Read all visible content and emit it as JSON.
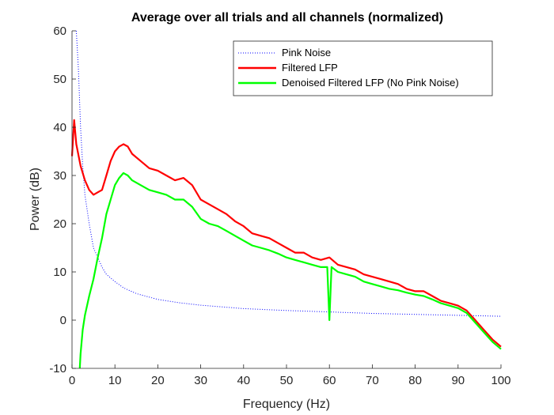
{
  "chart_data": {
    "type": "line",
    "title": "Average over all trials and all channels (normalized)",
    "xlabel": "Frequency (Hz)",
    "ylabel": "Power (dB)",
    "xlim": [
      0,
      100
    ],
    "ylim": [
      -10,
      60
    ],
    "xticks": [
      0,
      10,
      20,
      30,
      40,
      50,
      60,
      70,
      80,
      90,
      100
    ],
    "yticks": [
      -10,
      0,
      10,
      20,
      30,
      40,
      50,
      60
    ],
    "grid": false,
    "legend_position": "top-right",
    "series": [
      {
        "name": "Pink Noise",
        "color": "#0000ff",
        "style": "dotted",
        "points": [
          [
            1,
            60
          ],
          [
            1.5,
            52
          ],
          [
            2,
            40
          ],
          [
            2.5,
            32
          ],
          [
            3,
            26
          ],
          [
            4,
            20
          ],
          [
            5,
            15
          ],
          [
            6,
            13
          ],
          [
            7,
            11
          ],
          [
            8,
            9.5
          ],
          [
            10,
            8
          ],
          [
            12,
            6.7
          ],
          [
            15,
            5.5
          ],
          [
            20,
            4.3
          ],
          [
            25,
            3.6
          ],
          [
            30,
            3.1
          ],
          [
            40,
            2.4
          ],
          [
            50,
            2.0
          ],
          [
            60,
            1.7
          ],
          [
            70,
            1.4
          ],
          [
            80,
            1.2
          ],
          [
            90,
            1.0
          ],
          [
            100,
            0.8
          ]
        ]
      },
      {
        "name": "Filtered LFP",
        "color": "#ff0000",
        "style": "solid",
        "points": [
          [
            0,
            34
          ],
          [
            0.5,
            41.5
          ],
          [
            1,
            36.5
          ],
          [
            2,
            32
          ],
          [
            3,
            29
          ],
          [
            4,
            27
          ],
          [
            5,
            26
          ],
          [
            6,
            26.5
          ],
          [
            7,
            27
          ],
          [
            8,
            30
          ],
          [
            9,
            33
          ],
          [
            10,
            35
          ],
          [
            11,
            36
          ],
          [
            12,
            36.5
          ],
          [
            13,
            36
          ],
          [
            14,
            34.5
          ],
          [
            16,
            33
          ],
          [
            18,
            31.5
          ],
          [
            20,
            31
          ],
          [
            22,
            30
          ],
          [
            24,
            29
          ],
          [
            26,
            29.5
          ],
          [
            28,
            28
          ],
          [
            30,
            25
          ],
          [
            32,
            24
          ],
          [
            34,
            23
          ],
          [
            36,
            22
          ],
          [
            38,
            20.5
          ],
          [
            40,
            19.5
          ],
          [
            42,
            18
          ],
          [
            44,
            17.5
          ],
          [
            46,
            17
          ],
          [
            48,
            16
          ],
          [
            50,
            15
          ],
          [
            52,
            14
          ],
          [
            54,
            14
          ],
          [
            56,
            13
          ],
          [
            58,
            12.5
          ],
          [
            60,
            13
          ],
          [
            62,
            11.5
          ],
          [
            64,
            11
          ],
          [
            66,
            10.5
          ],
          [
            68,
            9.5
          ],
          [
            70,
            9
          ],
          [
            72,
            8.5
          ],
          [
            74,
            8
          ],
          [
            76,
            7.5
          ],
          [
            78,
            6.5
          ],
          [
            80,
            6
          ],
          [
            82,
            6
          ],
          [
            84,
            5
          ],
          [
            86,
            4
          ],
          [
            88,
            3.5
          ],
          [
            90,
            3
          ],
          [
            92,
            2
          ],
          [
            94,
            0
          ],
          [
            96,
            -2
          ],
          [
            98,
            -4
          ],
          [
            100,
            -5.5
          ]
        ]
      },
      {
        "name": "Denoised Filtered LFP (No Pink Noise)",
        "color": "#00ff00",
        "style": "solid",
        "points": [
          [
            1.8,
            -10
          ],
          [
            2,
            -7
          ],
          [
            2.5,
            -2
          ],
          [
            3,
            1
          ],
          [
            4,
            5
          ],
          [
            5,
            8.5
          ],
          [
            6,
            13
          ],
          [
            7,
            17
          ],
          [
            8,
            22
          ],
          [
            9,
            25
          ],
          [
            10,
            28
          ],
          [
            11,
            29.5
          ],
          [
            12,
            30.5
          ],
          [
            13,
            30
          ],
          [
            14,
            29
          ],
          [
            16,
            28
          ],
          [
            18,
            27
          ],
          [
            20,
            26.5
          ],
          [
            22,
            26
          ],
          [
            24,
            25
          ],
          [
            26,
            25
          ],
          [
            28,
            23.5
          ],
          [
            30,
            21
          ],
          [
            32,
            20
          ],
          [
            34,
            19.5
          ],
          [
            36,
            18.5
          ],
          [
            38,
            17.5
          ],
          [
            40,
            16.5
          ],
          [
            42,
            15.5
          ],
          [
            44,
            15
          ],
          [
            46,
            14.5
          ],
          [
            48,
            13.8
          ],
          [
            50,
            13
          ],
          [
            52,
            12.5
          ],
          [
            54,
            12
          ],
          [
            56,
            11.5
          ],
          [
            58,
            11
          ],
          [
            59.5,
            11
          ],
          [
            60,
            0
          ],
          [
            60.5,
            11
          ],
          [
            62,
            10
          ],
          [
            64,
            9.5
          ],
          [
            66,
            9
          ],
          [
            68,
            8
          ],
          [
            70,
            7.5
          ],
          [
            72,
            7
          ],
          [
            74,
            6.5
          ],
          [
            76,
            6.2
          ],
          [
            78,
            5.7
          ],
          [
            80,
            5.3
          ],
          [
            82,
            5
          ],
          [
            84,
            4.3
          ],
          [
            86,
            3.5
          ],
          [
            88,
            3
          ],
          [
            90,
            2.5
          ],
          [
            92,
            1.5
          ],
          [
            94,
            -0.5
          ],
          [
            96,
            -2.5
          ],
          [
            98,
            -4.5
          ],
          [
            100,
            -6
          ]
        ]
      }
    ]
  }
}
